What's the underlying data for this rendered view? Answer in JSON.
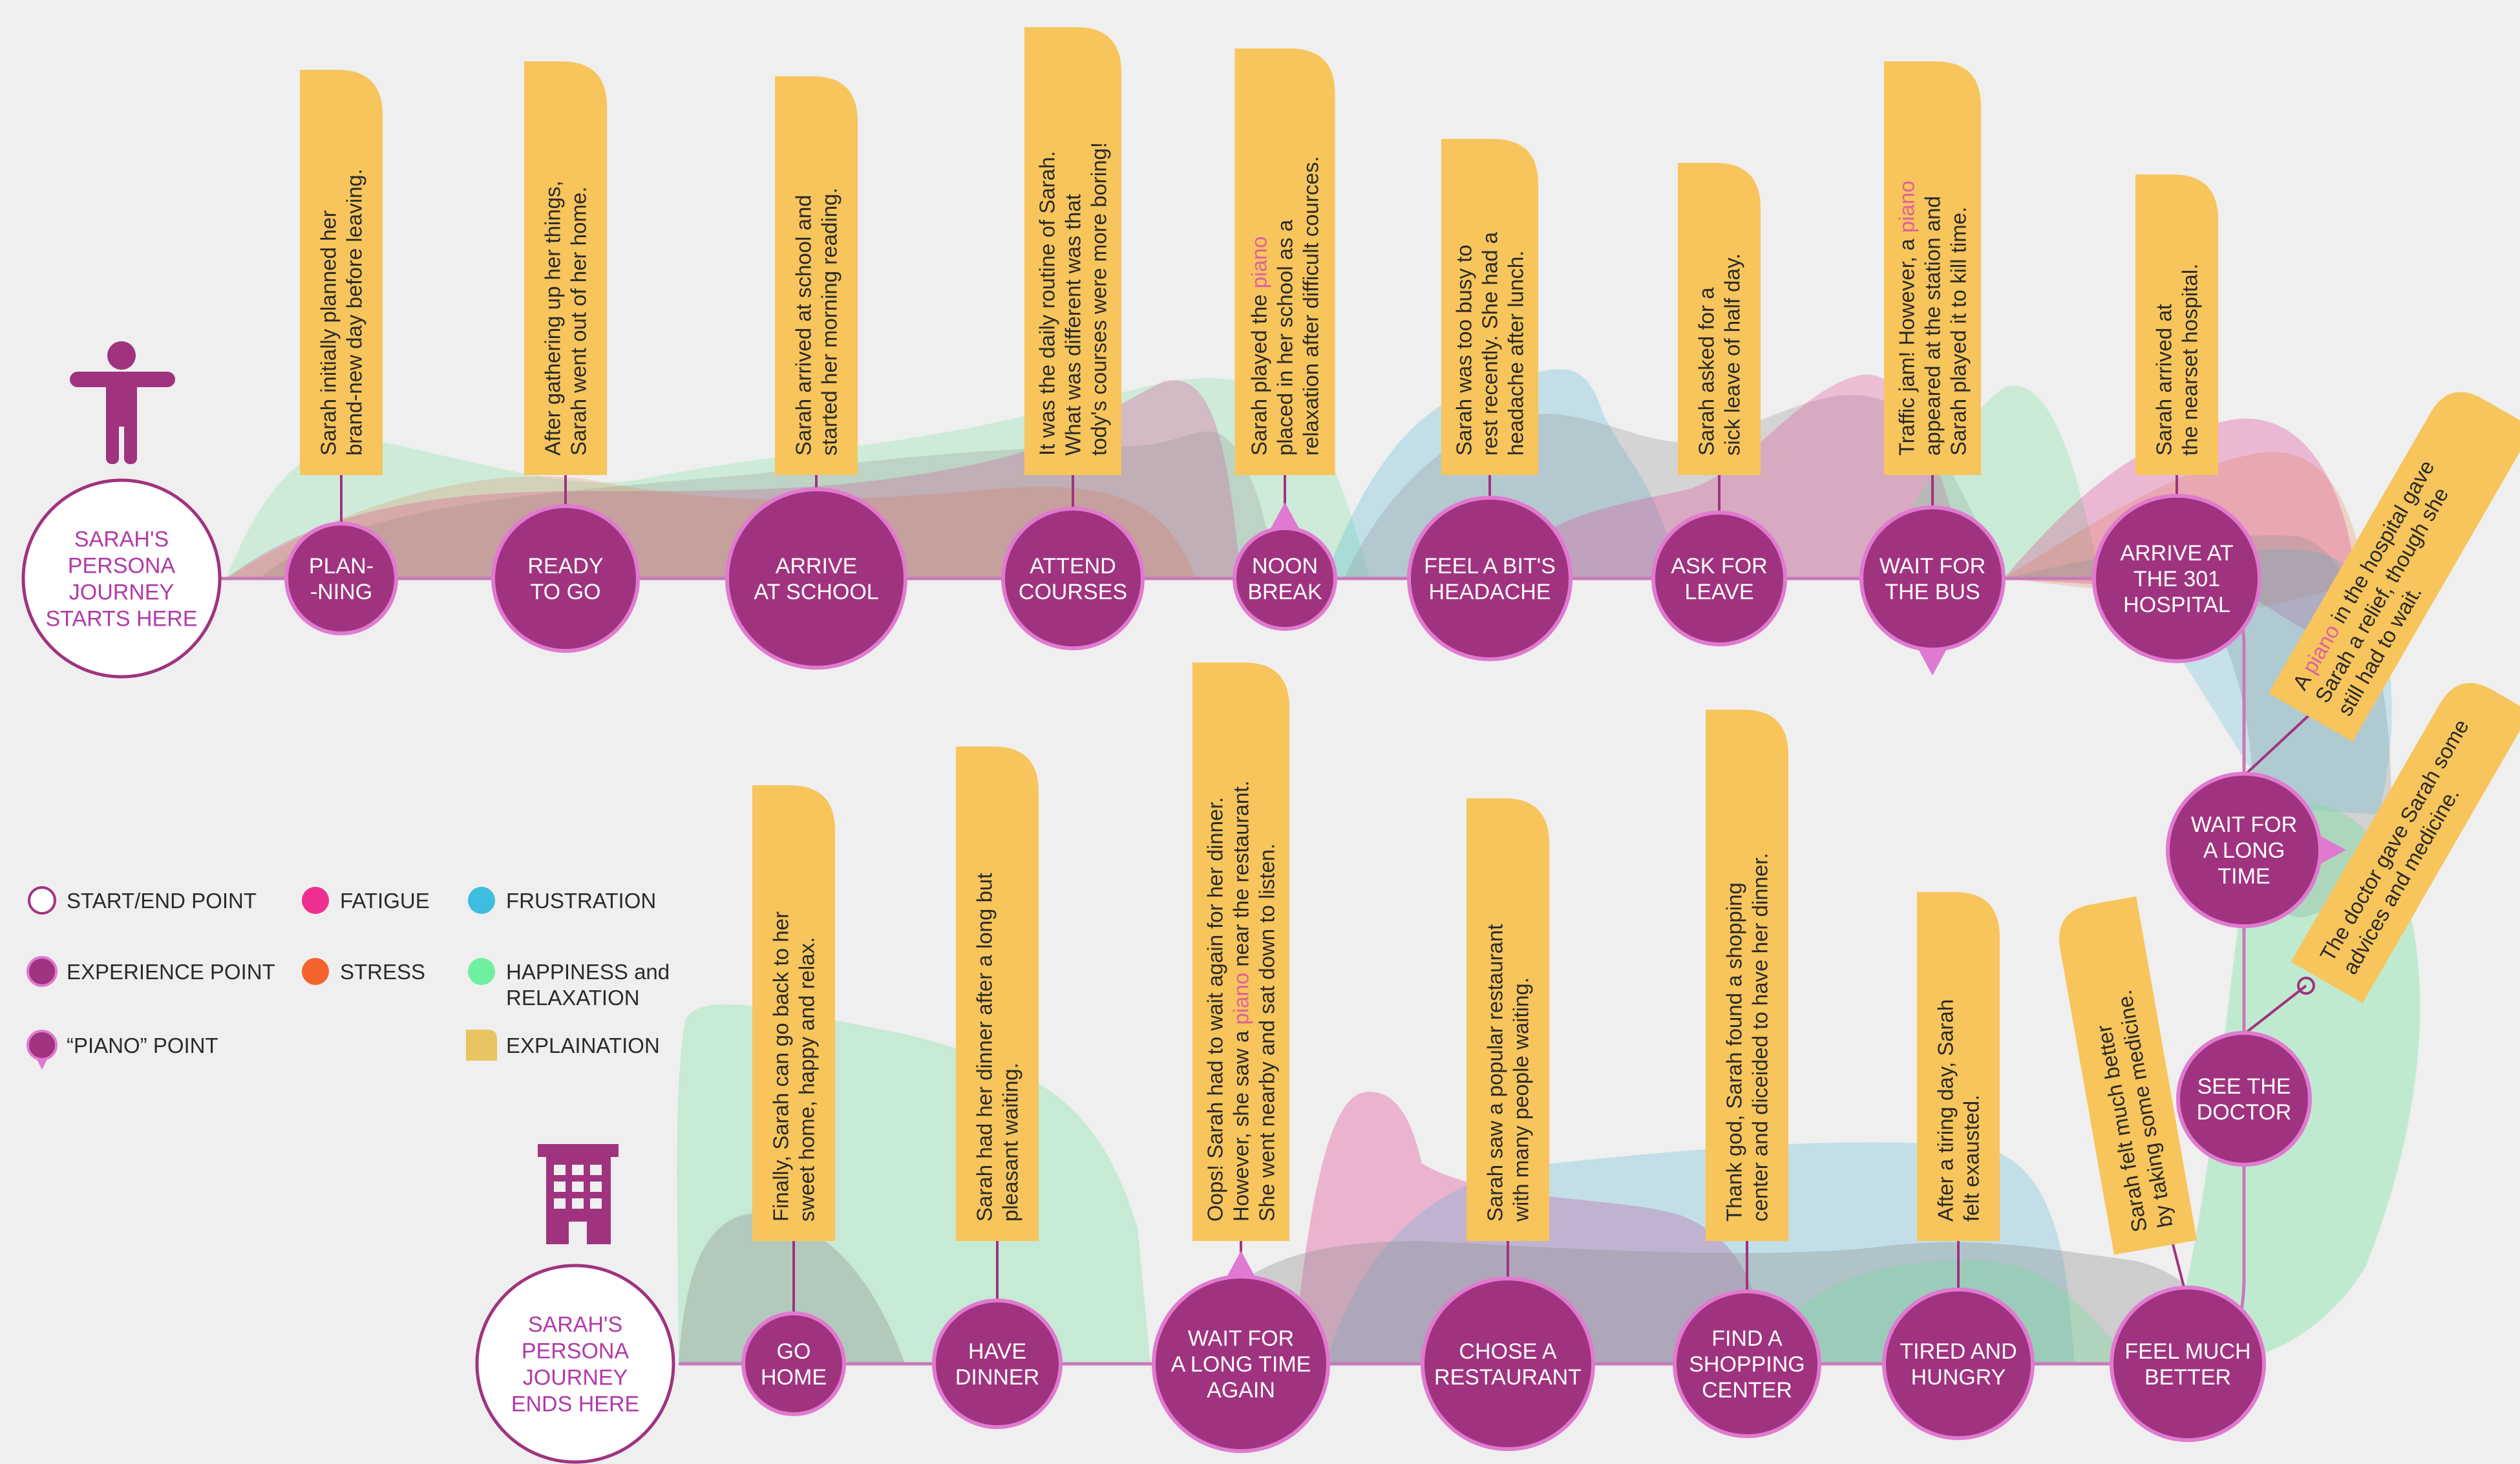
{
  "colors": {
    "node": "#a0337f",
    "node_border": "#e07ad0",
    "line": "#c779b8",
    "note": "#f7c55c",
    "fatigue": "#ee2f8f",
    "stress": "#f2642c",
    "frustration": "#3fbde0",
    "happiness": "#6ff0a0",
    "gray": "#999999"
  },
  "start": {
    "lines": [
      "SARAH'S",
      "PERSONA",
      "JOURNEY",
      "STARTS HERE"
    ]
  },
  "end": {
    "lines": [
      "SARAH'S",
      "PERSONA",
      "JOURNEY",
      "ENDS HERE"
    ]
  },
  "top_nodes": [
    {
      "lines": [
        "PLAN-",
        "-NING"
      ],
      "note": [
        "Sarah initially planned her",
        "brand-new day before leaving."
      ]
    },
    {
      "lines": [
        "READY",
        "TO  GO"
      ],
      "note": [
        "After gathering up her things,",
        "Sarah went out of her home."
      ]
    },
    {
      "lines": [
        "ARRIVE",
        "AT SCHOOL"
      ],
      "note": [
        "Sarah arrived at school and",
        "started her morning reading."
      ]
    },
    {
      "lines": [
        "ATTEND",
        "COURSES"
      ],
      "note": [
        "It was the daily routine of Sarah.",
        "What was different was that",
        "tody's courses were more boring!"
      ]
    },
    {
      "lines": [
        "NOON",
        "BREAK"
      ],
      "note": [
        "Sarah played the piano",
        "placed in her school as a",
        "relaxation after difficult cources."
      ]
    },
    {
      "lines": [
        "FEEL A BIT'S",
        "HEADACHE"
      ],
      "note": [
        "Sarah was too busy to",
        "rest recently. She had a",
        "headache after lunch."
      ]
    },
    {
      "lines": [
        "ASK FOR",
        "LEAVE"
      ],
      "note": [
        "Sarah asked for a",
        "sick leave of half day."
      ]
    },
    {
      "lines": [
        "WAIT FOR",
        "THE BUS"
      ],
      "note": [
        "Traffic jam! However, a piano",
        "appeared at the station and",
        "Sarah played it to kill time."
      ]
    },
    {
      "lines": [
        "ARRIVE AT",
        "THE 301",
        "HOSPITAL"
      ],
      "note": [
        "Sarah arrived at",
        "the nearset hospital."
      ]
    }
  ],
  "side_nodes": [
    {
      "lines": [
        "WAIT FOR",
        "A LONG",
        "TIME"
      ],
      "note": [
        "A piano in the hospital gave",
        "Sarah a relief, though she",
        "still had to wait."
      ]
    },
    {
      "lines": [
        "SEE THE",
        "DOCTOR"
      ],
      "note": [
        "The doctor gave Sarah some",
        "advices and medicine."
      ]
    }
  ],
  "bottom_nodes": [
    {
      "lines": [
        "GO",
        "HOME"
      ],
      "note": [
        "Finally, Sarah can go back to her",
        "sweet home, happy and relax."
      ]
    },
    {
      "lines": [
        "HAVE",
        "DINNER"
      ],
      "note": [
        "Sarah had her dinner  after a long but",
        "pleasant waiting."
      ]
    },
    {
      "lines": [
        "WAIT FOR",
        "A LONG TIME",
        "AGAIN"
      ],
      "note": [
        "Oops! Sarah had to wait again for her dinner.",
        "However, she saw a piano near the restaurant.",
        "She went nearby and sat down to listen."
      ]
    },
    {
      "lines": [
        "CHOSE A",
        "RESTAURANT"
      ],
      "note": [
        "Sarah saw a popular restaurant",
        "with many people waiting."
      ]
    },
    {
      "lines": [
        "FIND A",
        "SHOPPING",
        "CENTER"
      ],
      "note": [
        "Thank god, Sarah found a shopping",
        "center and diceided to have her dinner."
      ]
    },
    {
      "lines": [
        "TIRED AND",
        "HUNGRY"
      ],
      "note": [
        "After a tiring day, Sarah",
        "felt exausted."
      ]
    },
    {
      "lines": [
        "FEEL MUCH",
        "BETTER"
      ],
      "note": [
        "Sarah felt much better",
        "by taking some medicine."
      ]
    }
  ],
  "highlight_word": "piano",
  "legend": [
    {
      "label": "START/END POINT",
      "icon": "ring-icon"
    },
    {
      "label": "FATIGUE",
      "icon": "dot-icon"
    },
    {
      "label": "FRUSTRATION",
      "icon": "dot-icon"
    },
    {
      "label": "EXPERIENCE POINT",
      "icon": "filled-circle-icon"
    },
    {
      "label": "STRESS",
      "icon": "dot-icon"
    },
    {
      "label": "HAPPINESS and",
      "label2": "RELAXATION",
      "icon": "dot-icon"
    },
    {
      "label": "“PIANO” POINT",
      "icon": "pin-icon"
    },
    {
      "label": "EXPLAINATION",
      "icon": "note-icon"
    }
  ],
  "icons": {
    "start": "person-icon",
    "end": "building-icon"
  }
}
